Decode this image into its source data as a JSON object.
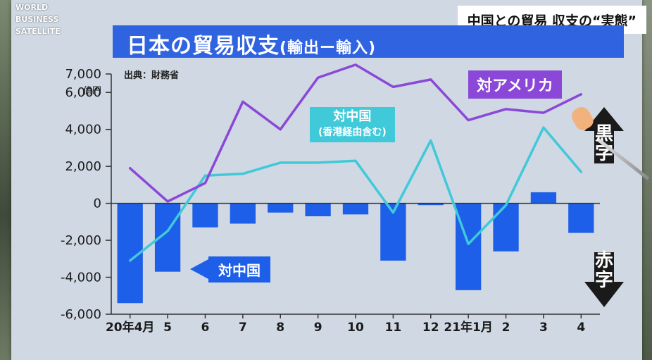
{
  "broadcaster": {
    "line1": "WORLD",
    "line2": "BUSINESS",
    "line3": "SATELLITE"
  },
  "caption": "中国との貿易 収支の“実態”",
  "title": "日本の貿易収支",
  "title_sub": "(輸出ー輸入)",
  "source": "出典：財務省",
  "unit": "億円",
  "side_labels": {
    "surplus": "黒字",
    "deficit": "赤字"
  },
  "chart_data": {
    "type": "bar",
    "title": "日本の貿易収支(輸出ー輸入)",
    "categories": [
      "20年4月",
      "5",
      "6",
      "7",
      "8",
      "9",
      "10",
      "11",
      "12",
      "21年1月",
      "2",
      "3",
      "4"
    ],
    "ylim": [
      -6000,
      7000
    ],
    "yticks": [
      7000,
      6000,
      4000,
      2000,
      0,
      -2000,
      -4000,
      -6000
    ],
    "ytick_labels": [
      "7,000",
      "6,000",
      "4,000",
      "2,000",
      "0",
      "-2,000",
      "-4,000",
      "-6,000"
    ],
    "series": [
      {
        "name": "対中国",
        "type": "bar",
        "color": "#1d5fe8",
        "values": [
          -5400,
          -3700,
          -1300,
          -1100,
          -500,
          -700,
          -600,
          -3100,
          -100,
          -4700,
          -2600,
          600,
          -1600
        ]
      },
      {
        "name": "対中国(香港経由含む)",
        "type": "line",
        "color": "#3fc9d9",
        "values": [
          -3100,
          -1500,
          1500,
          1600,
          2200,
          2200,
          2300,
          -500,
          3400,
          -2200,
          -100,
          4100,
          1700
        ]
      },
      {
        "name": "対アメリカ",
        "type": "line",
        "color": "#8b48d8",
        "values": [
          1900,
          100,
          1100,
          5500,
          4000,
          6800,
          7500,
          6300,
          6700,
          4500,
          5100,
          4900,
          5900
        ]
      }
    ],
    "labels": {
      "usa": "対アメリカ",
      "china_line": "対中国",
      "china_line_note": "(香港経由含む)",
      "china_bar": "対中国"
    },
    "grid": false,
    "legend": "inline"
  }
}
